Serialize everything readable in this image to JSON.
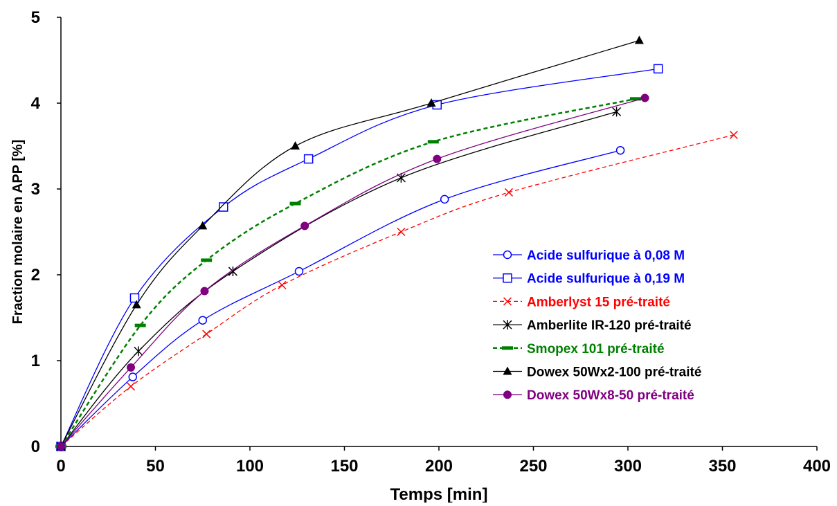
{
  "chart_data": {
    "type": "line",
    "xlabel": "Temps [min]",
    "ylabel": "Fraction molaire en APP [%]",
    "xlim": [
      0,
      400
    ],
    "ylim": [
      0,
      5
    ],
    "xticks": [
      0,
      50,
      100,
      150,
      200,
      250,
      300,
      350,
      400
    ],
    "yticks": [
      0,
      1,
      2,
      3,
      4,
      5
    ],
    "grid": false,
    "legend_position": "right",
    "series": [
      {
        "name": "Acide sulfurique à 0,08 M",
        "color": "#0000ff",
        "marker": "circle-open",
        "dash": "solid",
        "x": [
          0,
          38,
          75,
          126,
          203,
          296
        ],
        "y": [
          0,
          0.81,
          1.47,
          2.04,
          2.88,
          3.45
        ]
      },
      {
        "name": "Acide sulfurique à 0,19 M",
        "color": "#0000ff",
        "marker": "square-open",
        "dash": "solid",
        "x": [
          0,
          39,
          86,
          131,
          199,
          316
        ],
        "y": [
          0,
          1.73,
          2.79,
          3.35,
          3.98,
          4.4
        ]
      },
      {
        "name": "Amberlyst 15 pré-traité",
        "color": "#ff0000",
        "marker": "x",
        "dash": "dash",
        "x": [
          0,
          37,
          77,
          117,
          180,
          237,
          356
        ],
        "y": [
          0,
          0.7,
          1.31,
          1.88,
          2.5,
          2.96,
          3.63
        ]
      },
      {
        "name": "Amberlite IR-120 pré-traité",
        "color": "#000000",
        "marker": "asterisk",
        "dash": "solid",
        "x": [
          0,
          41,
          91,
          180,
          294
        ],
        "y": [
          0,
          1.11,
          2.04,
          3.13,
          3.9
        ]
      },
      {
        "name": "Smopex 101 pré-traité",
        "color": "#008000",
        "marker": "dash",
        "dash": "dash",
        "x": [
          0,
          42,
          77,
          124,
          197,
          304
        ],
        "y": [
          0,
          1.41,
          2.17,
          2.83,
          3.55,
          4.05
        ]
      },
      {
        "name": "Dowex 50Wx2-100 pré-traité",
        "color": "#000000",
        "marker": "triangle-filled",
        "dash": "solid",
        "x": [
          0,
          40,
          75,
          124,
          196,
          306
        ],
        "y": [
          0,
          1.65,
          2.57,
          3.5,
          4.0,
          4.73
        ]
      },
      {
        "name": "Dowex 50Wx8-50 pré-traité",
        "color": "#800080",
        "marker": "circle-filled",
        "dash": "solid",
        "x": [
          0,
          37,
          76,
          129,
          199,
          309
        ],
        "y": [
          0,
          0.92,
          1.81,
          2.57,
          3.35,
          4.06
        ]
      }
    ]
  }
}
